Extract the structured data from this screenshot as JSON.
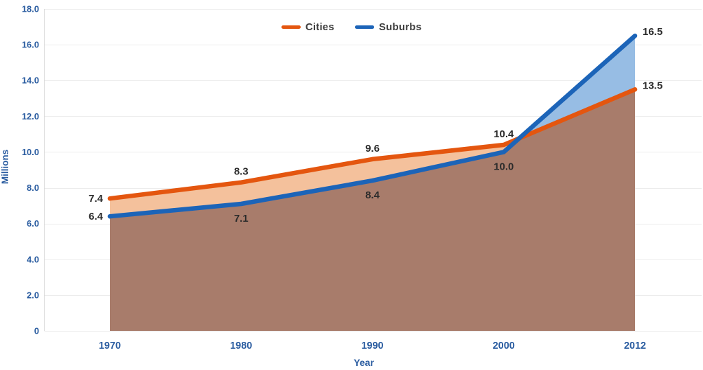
{
  "chart_data": {
    "type": "area",
    "title": "",
    "categories": [
      "1970",
      "1980",
      "1990",
      "2000",
      "2012"
    ],
    "series": [
      {
        "name": "Cities",
        "values": [
          7.4,
          8.3,
          9.6,
          10.4,
          13.5
        ],
        "line_color": "#E4560F",
        "fill_color": "#F4C19C"
      },
      {
        "name": "Suburbs",
        "values": [
          6.4,
          7.1,
          8.4,
          10.0,
          16.5
        ],
        "line_color": "#1C64B8",
        "fill_color": "#97BDE4"
      }
    ],
    "overlap_fill_color": "#A87C6B",
    "xlabel": "Year",
    "ylabel": "Millions",
    "ylim": [
      0,
      18
    ],
    "ytick_step": 2,
    "ytick_labels": [
      "0",
      "2.0",
      "4.0",
      "6.0",
      "8.0",
      "10.0",
      "12.0",
      "14.0",
      "16.0",
      "18.0"
    ],
    "grid": "horizontal",
    "legend_position": "top-center",
    "colors": {
      "axis_text": "#2A5CA0",
      "data_label_text": "#2B2B2B",
      "legend_text": "#3F3F3F",
      "gridline": "#ECECEC",
      "axis_line": "#D9D9D9",
      "background": "#FFFFFF"
    }
  }
}
